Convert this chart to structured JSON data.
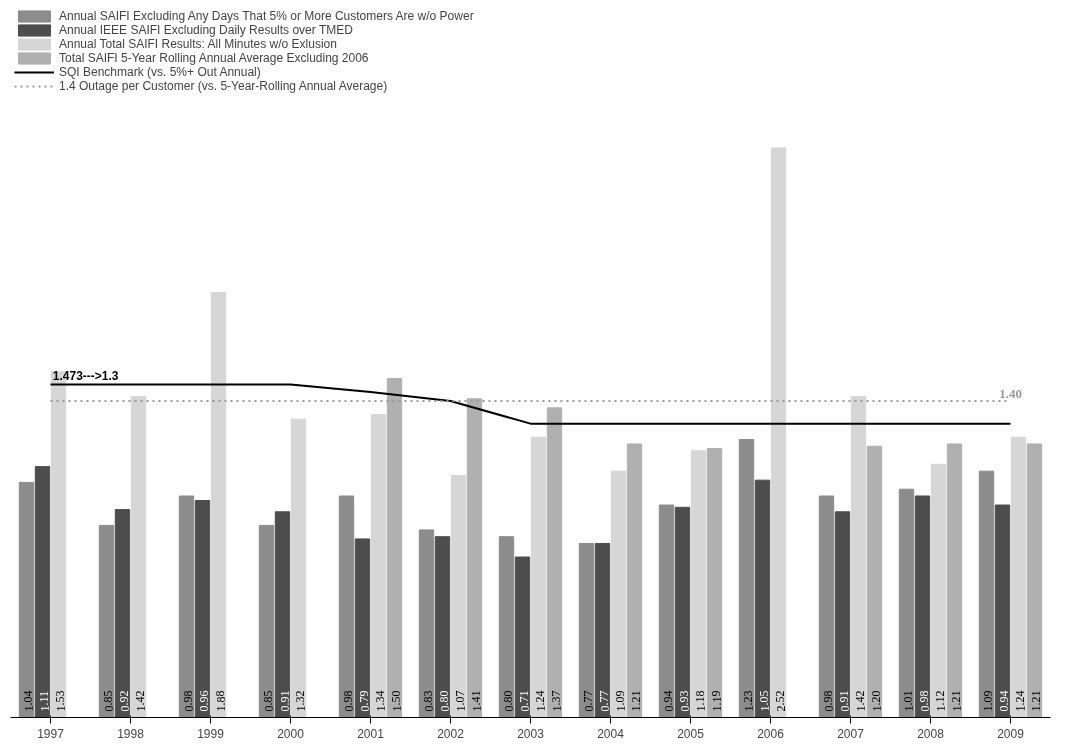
{
  "chart_data": {
    "type": "bar",
    "categories": [
      "1997",
      "1998",
      "1999",
      "2000",
      "2001",
      "2002",
      "2003",
      "2004",
      "2005",
      "2006",
      "2007",
      "2008",
      "2009"
    ],
    "series": [
      {
        "name": "Annual SAIFI Excluding Any Days That 5% or More Customers Are w/o Power",
        "color": "#8c8c8c",
        "values": [
          1.04,
          0.85,
          0.98,
          0.85,
          0.98,
          0.83,
          0.8,
          0.77,
          0.94,
          1.23,
          0.98,
          1.01,
          1.09
        ],
        "value_labels": [
          "1.04",
          "0.85",
          "0.98",
          "0.85",
          "0.98",
          "0.83",
          "0.80",
          "0.77",
          "0.94",
          "1.23",
          "0.98",
          "1.01",
          "1.09"
        ]
      },
      {
        "name": "Annual IEEE SAIFI Excluding Daily Results over TMED",
        "color": "#4d4d4d",
        "values": [
          1.11,
          0.92,
          0.96,
          0.91,
          0.79,
          0.8,
          0.71,
          0.77,
          0.93,
          1.05,
          0.91,
          0.98,
          0.94
        ],
        "value_labels": [
          "1.11",
          "0.92",
          "0.96",
          "0.91",
          "0.79",
          "0.80",
          "0.71",
          "0.77",
          "0.93",
          "1.05",
          "0.91",
          "0.98",
          "0.94"
        ]
      },
      {
        "name": "Annual Total SAIFI Results: All Minutes w/o Exlusion",
        "color": "#d6d6d6",
        "values": [
          1.53,
          1.42,
          1.88,
          1.32,
          1.34,
          1.07,
          1.24,
          1.09,
          1.18,
          2.52,
          1.42,
          1.12,
          1.24
        ],
        "value_labels": [
          "1.53",
          "1.42",
          "1.88",
          "1.32",
          "1.34",
          "1.07",
          "1.24",
          "1.09",
          "1.18",
          "2.52",
          "1.42",
          "1.12",
          "1.24"
        ]
      },
      {
        "name": "Total SAIFI 5-Year Rolling Annual Average Excluding 2006",
        "color": "#b0b0b0",
        "values": [
          null,
          null,
          null,
          null,
          1.5,
          1.41,
          1.37,
          1.21,
          1.19,
          null,
          1.2,
          1.21,
          1.21
        ],
        "value_labels": [
          null,
          null,
          null,
          null,
          "1.50",
          "1.41",
          "1.37",
          "1.21",
          "1.19",
          null,
          "1.20",
          "1.21",
          "1.21"
        ]
      },
      {
        "name": "SQI Benchmark (vs. 5%+ Out Annual)",
        "type": "line",
        "color": "#000000",
        "line_style": "solid",
        "values": [
          1.473,
          1.473,
          1.473,
          1.473,
          1.44,
          1.4,
          1.3,
          1.3,
          1.3,
          1.3,
          1.3,
          1.3,
          1.3
        ]
      },
      {
        "name": "1.4 Outage per Customer (vs. 5-Year-Rolling Annual Average)",
        "type": "line",
        "color": "#999999",
        "line_style": "dotted",
        "values": [
          1.4,
          1.4,
          1.4,
          1.4,
          1.4,
          1.4,
          1.4,
          1.4,
          1.4,
          1.4,
          1.4,
          1.4,
          1.4
        ],
        "value_labels": [
          null,
          null,
          null,
          null,
          null,
          null,
          null,
          null,
          null,
          null,
          null,
          null,
          "1.40"
        ]
      }
    ],
    "annotations": [
      {
        "text": "1.473--->1.3",
        "x": "1998",
        "y": 1.473
      }
    ],
    "legend": "top left",
    "grid": false
  }
}
